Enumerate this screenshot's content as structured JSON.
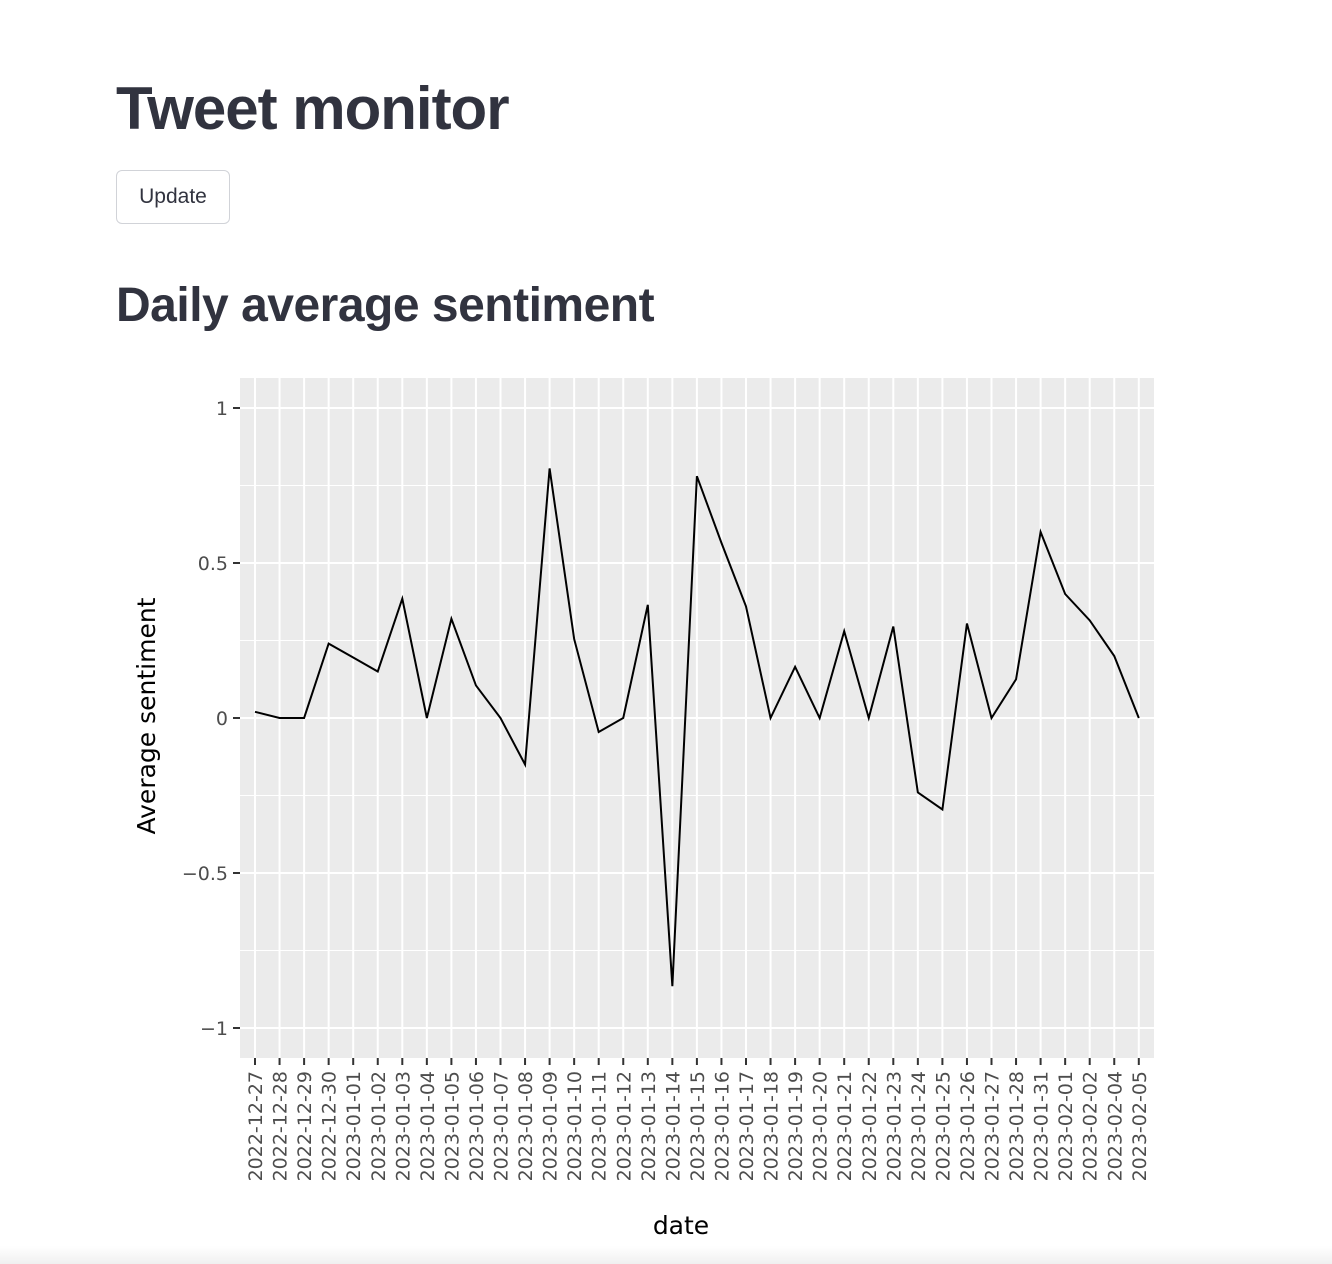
{
  "app": {
    "title": "Tweet monitor",
    "update_label": "Update",
    "section_title": "Daily average sentiment"
  },
  "colors": {
    "panel_background": "#ebebeb",
    "grid": "#ffffff",
    "line": "#000000",
    "text": "#31333f",
    "axis_text": "#4d4d4d"
  },
  "chart_data": {
    "type": "line",
    "title": "",
    "xlabel": "date",
    "ylabel": "Average sentiment",
    "ylim": [
      -1.1,
      1.1
    ],
    "yticks": [
      1,
      0.5,
      0,
      -0.5,
      -1
    ],
    "ytick_labels": [
      "1",
      "0.5",
      "0",
      "−0.5",
      "−1"
    ],
    "grid": true,
    "legend": "none",
    "categories": [
      "2022-12-27",
      "2022-12-28",
      "2022-12-29",
      "2022-12-30",
      "2023-01-01",
      "2023-01-02",
      "2023-01-03",
      "2023-01-04",
      "2023-01-05",
      "2023-01-06",
      "2023-01-07",
      "2023-01-08",
      "2023-01-09",
      "2023-01-10",
      "2023-01-11",
      "2023-01-12",
      "2023-01-13",
      "2023-01-14",
      "2023-01-15",
      "2023-01-16",
      "2023-01-17",
      "2023-01-18",
      "2023-01-19",
      "2023-01-20",
      "2023-01-21",
      "2023-01-22",
      "2023-01-23",
      "2023-01-24",
      "2023-01-25",
      "2023-01-26",
      "2023-01-27",
      "2023-01-28",
      "2023-01-31",
      "2023-02-01",
      "2023-02-02",
      "2023-02-04",
      "2023-02-05"
    ],
    "series": [
      {
        "values": [
          0.02,
          0.0,
          0.0,
          0.24,
          0.195,
          0.15,
          0.385,
          0.0,
          0.32,
          0.105,
          0.0,
          -0.15,
          0.805,
          0.255,
          -0.045,
          0.0,
          0.365,
          -0.865,
          0.78,
          0.565,
          0.36,
          0.0,
          0.165,
          0.0,
          0.28,
          0.0,
          0.295,
          -0.24,
          -0.295,
          0.305,
          0.0,
          0.125,
          0.6,
          0.4,
          0.315,
          0.2,
          0.0
        ]
      }
    ]
  }
}
